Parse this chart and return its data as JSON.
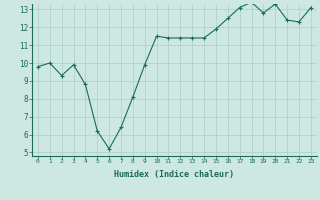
{
  "x": [
    0,
    1,
    2,
    3,
    4,
    5,
    6,
    7,
    8,
    9,
    10,
    11,
    12,
    13,
    14,
    15,
    16,
    17,
    18,
    19,
    20,
    21,
    22,
    23
  ],
  "y": [
    9.8,
    10.0,
    9.3,
    9.9,
    8.8,
    6.2,
    5.2,
    6.4,
    8.1,
    9.9,
    11.5,
    11.4,
    11.4,
    11.4,
    11.4,
    11.9,
    12.5,
    13.1,
    13.4,
    12.8,
    13.3,
    12.4,
    12.3,
    13.1
  ],
  "ylim": [
    4.8,
    13.3
  ],
  "yticks": [
    5,
    6,
    7,
    8,
    9,
    10,
    11,
    12,
    13
  ],
  "xlabel": "Humidex (Indice chaleur)",
  "line_color": "#1a6b5a",
  "marker": "+",
  "bg_color": "#cce8e0",
  "grid_color": "#aacfc8"
}
